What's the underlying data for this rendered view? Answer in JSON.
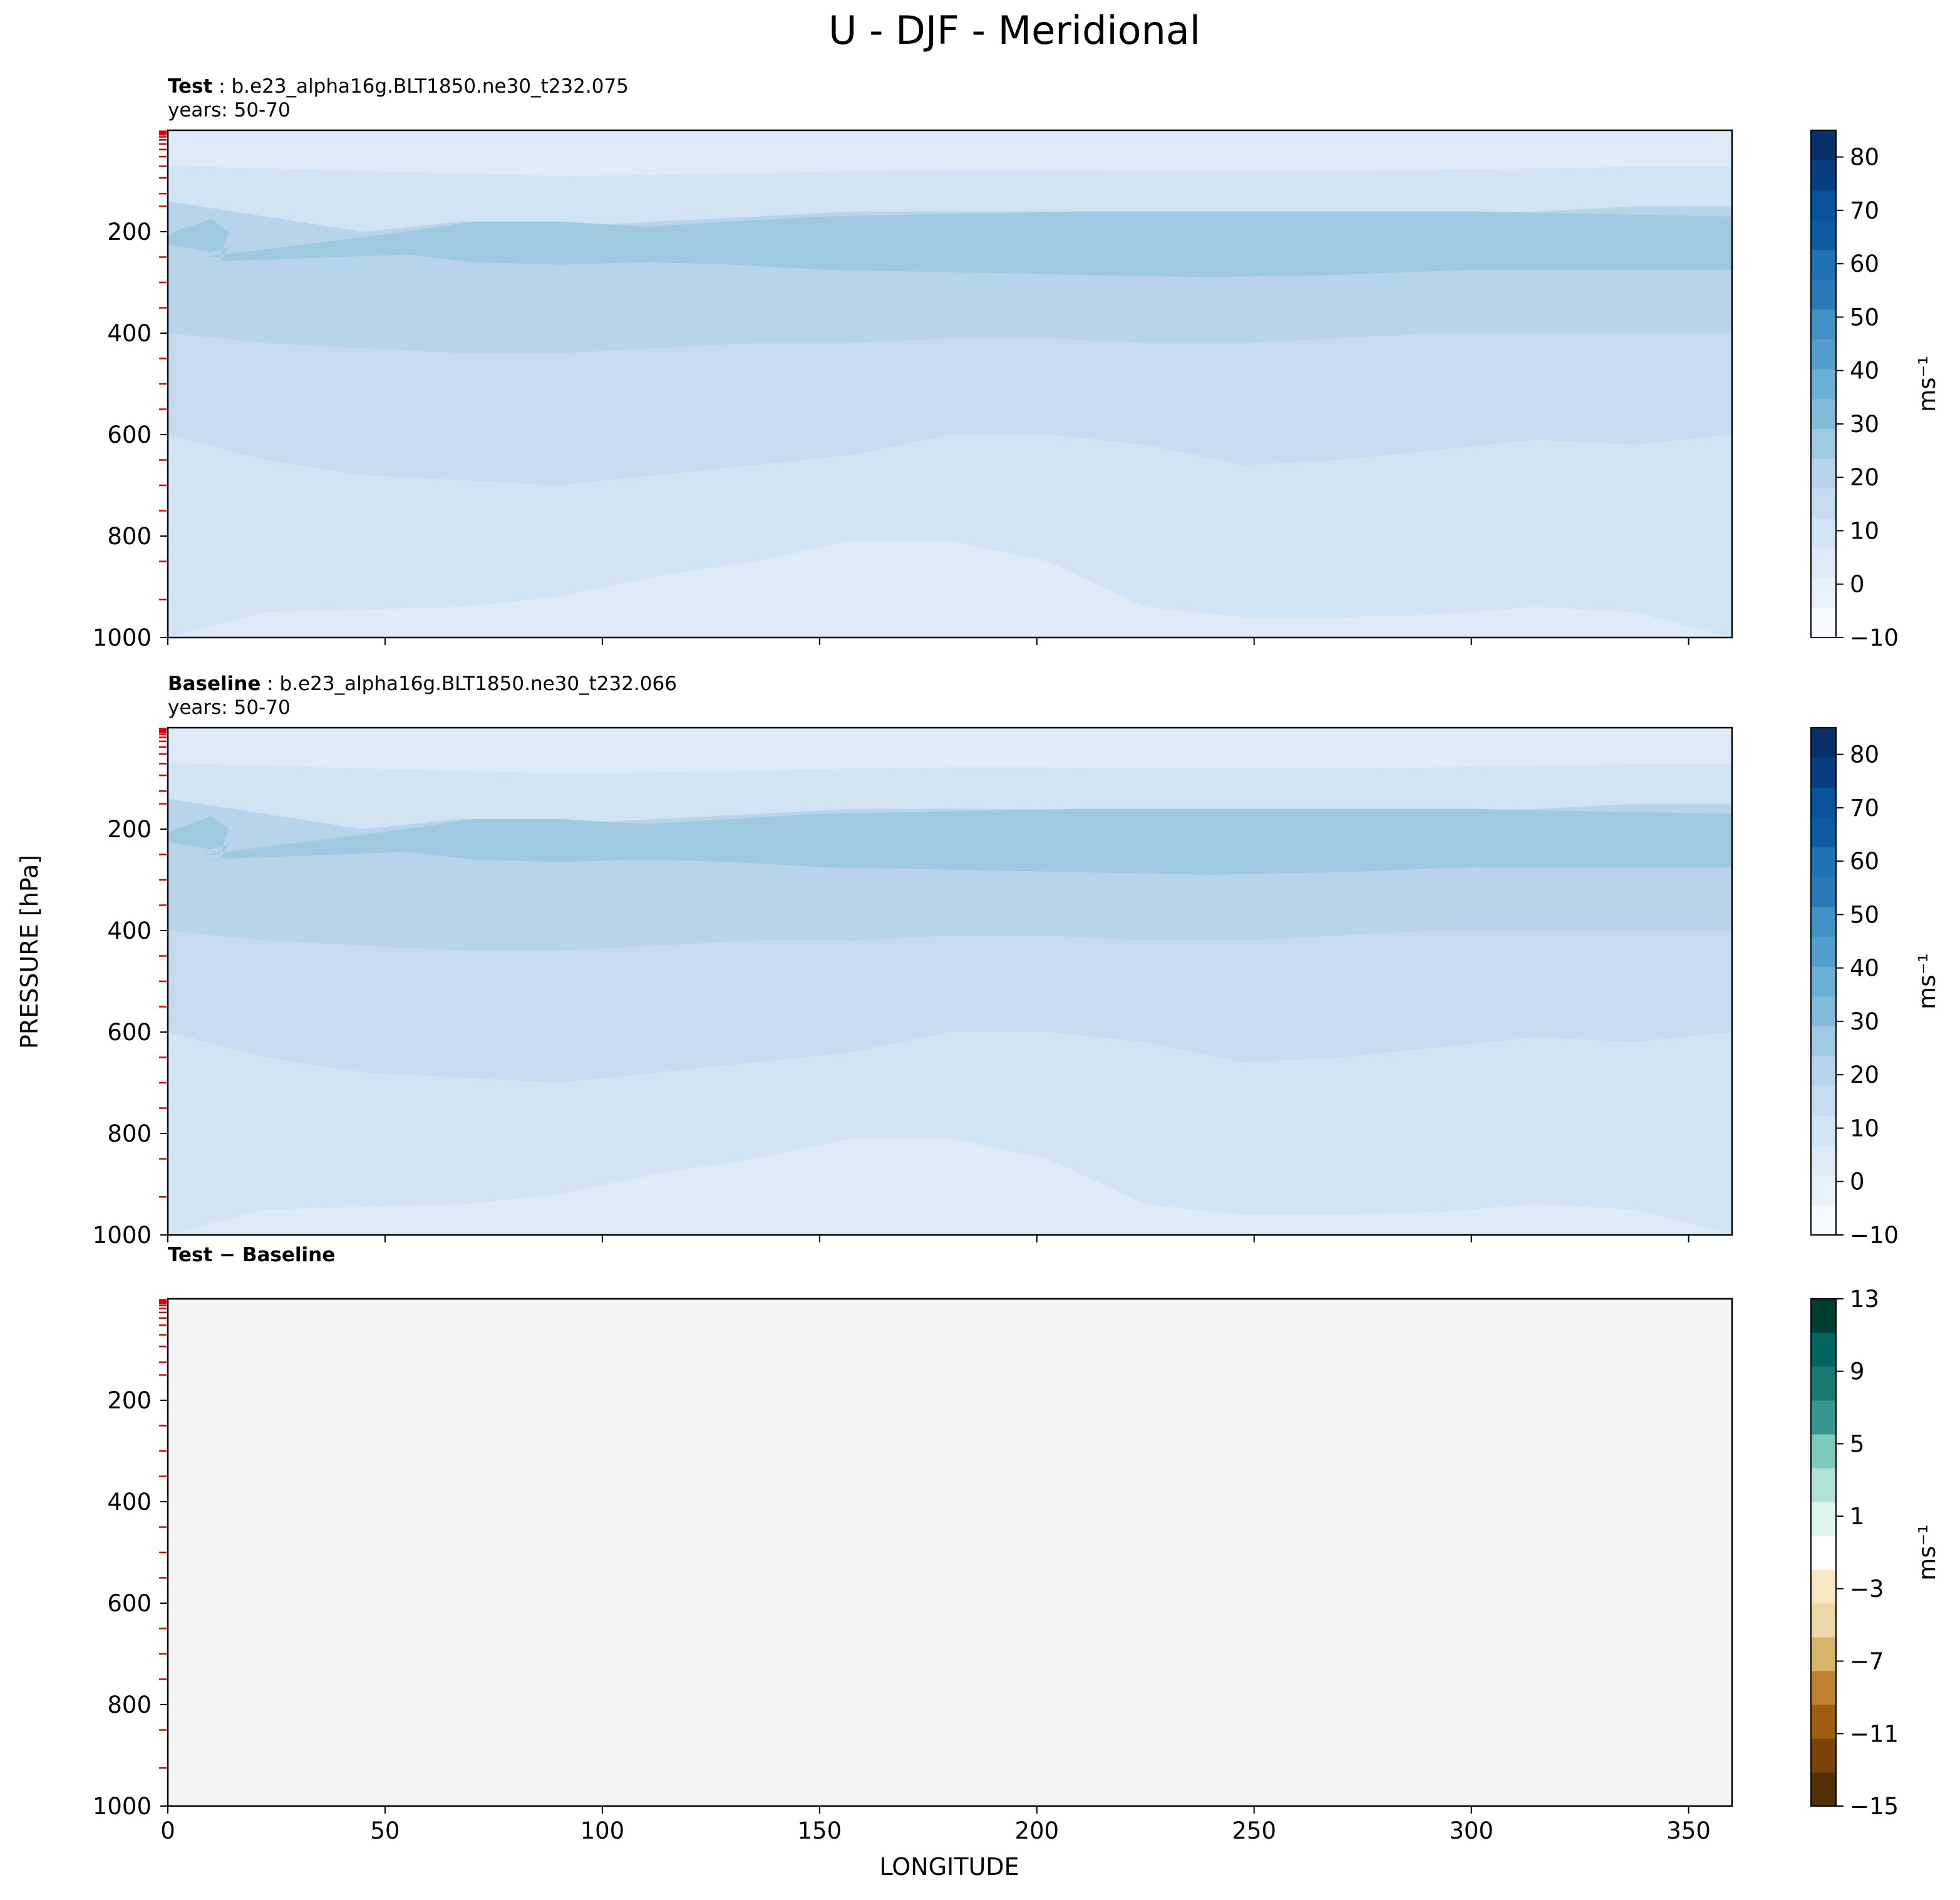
{
  "figure_title": "U - DJF - Meridional",
  "shared_ylabel": "PRESSURE [hPa]",
  "xlabel": "LONGITUDE",
  "colors": {
    "blues": [
      "#f7fbff",
      "#e8f1fa",
      "#deebf7",
      "#d2e3f3",
      "#c6dbef",
      "#b8d4ea",
      "#9ecae1",
      "#82badb",
      "#6baed6",
      "#539ecd",
      "#4292c6",
      "#2a7ab9",
      "#2171b5",
      "#0e59a2",
      "#08519c",
      "#083d7f",
      "#08306b"
    ],
    "diff": [
      "#543005",
      "#7a4309",
      "#a15d0f",
      "#bf812d",
      "#d7b469",
      "#ebd9a8",
      "#f6e8c3",
      "#ffffff",
      "#e0f3ef",
      "#b2e2d6",
      "#7ccabe",
      "#35978f",
      "#1a7a70",
      "#01665e",
      "#003c30"
    ],
    "diff_fill": "#f3f4f3",
    "ytick_color": "#e00000"
  },
  "panels": [
    {
      "title_bold": "Test",
      "title_rest": " : b.e23_alpha16g.BLT1850.ne30_t232.075",
      "subtitle": "years: 50-70",
      "colorbar_label": "ms⁻¹",
      "colorbar_ticks": [
        "−10",
        "0",
        "10",
        "20",
        "30",
        "40",
        "50",
        "60",
        "70",
        "80"
      ]
    },
    {
      "title_bold": "Baseline",
      "title_rest": " : b.e23_alpha16g.BLT1850.ne30_t232.066",
      "subtitle": "years: 50-70",
      "colorbar_label": "ms⁻¹",
      "colorbar_ticks": [
        "−10",
        "0",
        "10",
        "20",
        "30",
        "40",
        "50",
        "60",
        "70",
        "80"
      ]
    },
    {
      "title_bold": "Test − Baseline",
      "title_rest": "",
      "subtitle": "",
      "colorbar_label": "ms⁻¹",
      "colorbar_ticks": [
        "−15",
        "−11",
        "−7",
        "−3",
        "1",
        "5",
        "9",
        "13"
      ]
    }
  ],
  "chart_data": {
    "type": "heatmap",
    "title": "U - DJF - Meridional",
    "xlabel": "LONGITUDE",
    "ylabel": "PRESSURE [hPa]",
    "xlim": [
      0,
      360
    ],
    "ylim": [
      1000,
      0
    ],
    "xticks": [
      0,
      50,
      100,
      150,
      200,
      250,
      300,
      350
    ],
    "yticks": [
      200,
      400,
      600,
      800,
      1000
    ],
    "panels": [
      {
        "name": "Test",
        "colorbar_range": [
          -10,
          85
        ],
        "colorbar_levels": [
          -10,
          0,
          10,
          20,
          30,
          40,
          50,
          60,
          70,
          80
        ],
        "bands_u_ms": [
          {
            "u": 5,
            "top": [
              1000,
              950,
              945,
              940,
              920,
              880,
              850,
              810,
              810,
              850,
              940,
              960,
              960,
              955,
              940,
              950,
              1000
            ],
            "bottom": [
              1000,
              1000,
              1000,
              1000,
              1000,
              1000,
              1000,
              1000,
              1000,
              1000,
              1000,
              1000,
              1000,
              1000,
              1000,
              1000,
              1000
            ]
          },
          {
            "u": 10,
            "top": [
              600,
              650,
              680,
              690,
              700,
              680,
              660,
              640,
              600,
              600,
              620,
              660,
              650,
              630,
              610,
              620,
              600
            ],
            "bottom": "prev"
          },
          {
            "u": 15,
            "top": [
              400,
              420,
              430,
              440,
              440,
              430,
              420,
              420,
              410,
              410,
              420,
              420,
              410,
              400,
              400,
              400,
              400
            ],
            "bottom": "prev"
          },
          {
            "u": 20,
            "top": [
              140,
              170,
              200,
              180,
              190,
              180,
              170,
              160,
              160,
              160,
              170,
              175,
              170,
              165,
              160,
              150,
              150
            ],
            "bottom": "prev"
          },
          {
            "u": 10,
            "top": [
              70,
              75,
              80,
              85,
              90,
              88,
              85,
              80,
              78,
              78,
              80,
              80,
              80,
              78,
              75,
              72,
              72
            ],
            "bottom": "prev"
          },
          {
            "u": 5,
            "top": [
              0,
              0,
              0,
              0,
              0,
              0,
              0,
              0,
              0,
              0,
              0,
              0,
              0,
              0,
              0,
              0,
              0
            ],
            "bottom": "prev"
          }
        ],
        "jet_core_u_ms": 25,
        "jet_core_pressure_hPa": [
          170,
          280
        ]
      },
      {
        "name": "Baseline",
        "colorbar_range": [
          -10,
          85
        ],
        "colorbar_levels": [
          -10,
          0,
          10,
          20,
          30,
          40,
          50,
          60,
          70,
          80
        ],
        "bands_u_ms": "same as Test",
        "jet_core_u_ms": 25,
        "jet_core_pressure_hPa": [
          170,
          280
        ]
      },
      {
        "name": "Test − Baseline",
        "colorbar_range": [
          -15,
          13
        ],
        "colorbar_levels": [
          -15,
          -11,
          -7,
          -3,
          1,
          5,
          9,
          13
        ],
        "difference_u_ms": 0
      }
    ],
    "level_marks_hPa": [
      2,
      4,
      6,
      9,
      13,
      19,
      27,
      38,
      52,
      71,
      94,
      125,
      150,
      250,
      300,
      350,
      450,
      500,
      550,
      650,
      700,
      750,
      850,
      925
    ]
  }
}
